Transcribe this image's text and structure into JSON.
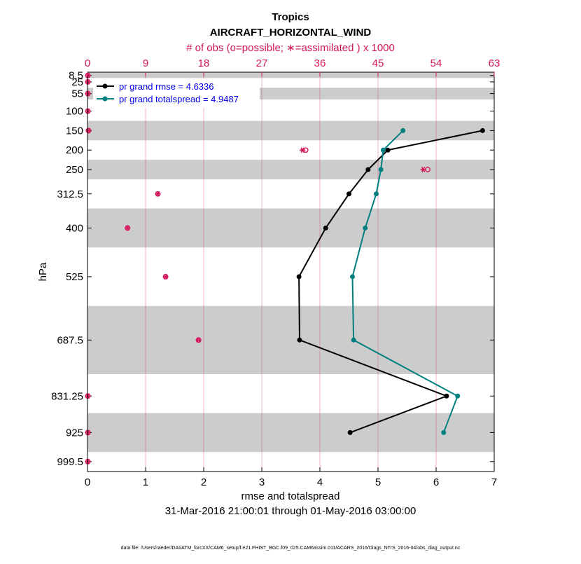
{
  "chart_data": {
    "type": "line",
    "title": "Tropics",
    "subtitle": "AIRCRAFT_HORIZONTAL_WIND",
    "top_axis_label": "# of obs (o=possible; ∗=assimilated ) x 1000",
    "xlabel": "rmse and totalspread",
    "ylabel": "hPa",
    "date_range": "31-Mar-2016 21:00:01 through 01-May-2016 03:00:00",
    "footer": "data file: /Users/raeder/DAI/ATM_forcXX/CAM6_setup/f.e21.FHIST_BGC.f09_025.CAM6assim.011/ACARS_2016/Diags_NTrS_2016-04/obs_diag_output.nc",
    "xlim": [
      0,
      7
    ],
    "x_ticks": [
      "0",
      "1",
      "2",
      "3",
      "4",
      "5",
      "6",
      "7"
    ],
    "top_xlim": [
      0,
      63
    ],
    "top_ticks": [
      "0",
      "9",
      "18",
      "27",
      "36",
      "45",
      "54",
      "63"
    ],
    "ylim": [
      1025,
      0
    ],
    "y_ticks": [
      "8.5",
      "25",
      "55",
      "100",
      "150",
      "200",
      "250",
      "312.5",
      "400",
      "525",
      "687.5",
      "831.25",
      "925",
      "999.5"
    ],
    "levels": [
      8.5,
      25,
      55,
      100,
      150,
      200,
      250,
      312.5,
      400,
      525,
      687.5,
      831.25,
      925,
      999.5
    ],
    "bands": [
      [
        0,
        15
      ],
      [
        40,
        70
      ],
      [
        125,
        175
      ],
      [
        225,
        275
      ],
      [
        350,
        450
      ],
      [
        600,
        775
      ],
      [
        875,
        975
      ]
    ],
    "series": [
      {
        "name": "pr grand rmse",
        "legend": "pr grand rmse = 4.6336",
        "color": "#000000",
        "points": [
          [
            6.8,
            150
          ],
          [
            5.17,
            200
          ],
          [
            4.83,
            250
          ],
          [
            4.5,
            312.5
          ],
          [
            4.1,
            400
          ],
          [
            3.64,
            525
          ],
          [
            3.65,
            687.5
          ],
          [
            6.18,
            831.25
          ],
          [
            4.52,
            925
          ]
        ]
      },
      {
        "name": "pr grand totalspread",
        "legend": "pr grand totalspread = 4.9487",
        "color": "#007f7f",
        "points": [
          [
            5.43,
            150
          ],
          [
            5.09,
            200
          ],
          [
            5.05,
            250
          ],
          [
            4.97,
            312.5
          ],
          [
            4.78,
            400
          ],
          [
            4.56,
            525
          ],
          [
            4.58,
            687.5
          ],
          [
            6.37,
            831.25
          ],
          [
            6.13,
            925
          ]
        ]
      }
    ],
    "obs_counts": {
      "color": "#d4145a",
      "unit": "x 1000",
      "points": [
        {
          "level": 8.5,
          "possible": 0.05,
          "assimilated": 0.05
        },
        {
          "level": 25,
          "possible": 0.05,
          "assimilated": 0.05
        },
        {
          "level": 55,
          "possible": 0.05,
          "assimilated": 0.05
        },
        {
          "level": 100,
          "possible": 0.05,
          "assimilated": 0.05
        },
        {
          "level": 150,
          "possible": 0.15,
          "assimilated": 0.15
        },
        {
          "level": 200,
          "possible": 33.8,
          "assimilated": 33.3
        },
        {
          "level": 250,
          "possible": 52.7,
          "assimilated": 52.0
        },
        {
          "level": 312.5,
          "possible": 10.9,
          "assimilated": 10.9
        },
        {
          "level": 400,
          "possible": 6.2,
          "assimilated": 6.2
        },
        {
          "level": 525,
          "possible": 12.1,
          "assimilated": 12.1
        },
        {
          "level": 687.5,
          "possible": 17.2,
          "assimilated": 17.2
        },
        {
          "level": 831.25,
          "possible": 0.05,
          "assimilated": 0.05
        },
        {
          "level": 925,
          "possible": 0.05,
          "assimilated": 0.05
        },
        {
          "level": 999.5,
          "possible": 0.05,
          "assimilated": 0.05
        }
      ]
    }
  }
}
